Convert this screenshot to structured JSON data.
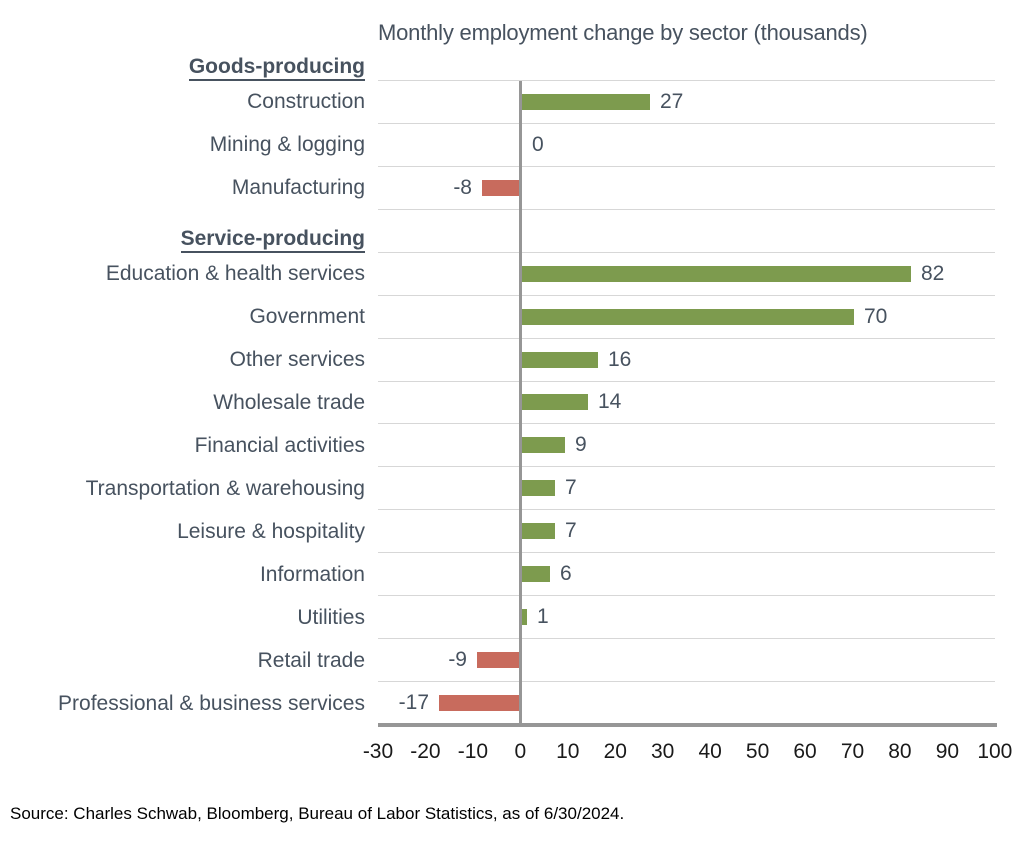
{
  "source": "Source: Charles Schwab, Bloomberg, Bureau of Labor Statistics, as of 6/30/2024.",
  "chart_data": {
    "type": "bar",
    "orientation": "horizontal",
    "title": "Monthly employment change by sector (thousands)",
    "xlabel": "",
    "ylabel": "",
    "xlim": [
      -30,
      100
    ],
    "x_ticks": [
      -30,
      -20,
      -10,
      0,
      10,
      20,
      30,
      40,
      50,
      60,
      70,
      80,
      90,
      100
    ],
    "grid": "horizontal-row-separators",
    "legend": "none",
    "colors": {
      "positive_bar": "#7D9B4E",
      "negative_bar": "#C86B5D",
      "label_text": "#47525F",
      "tick_text": "#1A1A1A",
      "gridline": "#D7D7D7",
      "axis_line": "#969696"
    },
    "rows": [
      {
        "type": "header",
        "label": "Goods-producing"
      },
      {
        "type": "bar",
        "label": "Construction",
        "value": 27
      },
      {
        "type": "bar",
        "label": "Mining & logging",
        "value": 0
      },
      {
        "type": "bar",
        "label": "Manufacturing",
        "value": -8
      },
      {
        "type": "header",
        "label": "Service-producing"
      },
      {
        "type": "bar",
        "label": "Education & health services",
        "value": 82
      },
      {
        "type": "bar",
        "label": "Government",
        "value": 70
      },
      {
        "type": "bar",
        "label": "Other services",
        "value": 16
      },
      {
        "type": "bar",
        "label": "Wholesale trade",
        "value": 14
      },
      {
        "type": "bar",
        "label": "Financial activities",
        "value": 9
      },
      {
        "type": "bar",
        "label": "Transportation & warehousing",
        "value": 7
      },
      {
        "type": "bar",
        "label": "Leisure & hospitality",
        "value": 7
      },
      {
        "type": "bar",
        "label": "Information",
        "value": 6
      },
      {
        "type": "bar",
        "label": "Utilities",
        "value": 1
      },
      {
        "type": "bar",
        "label": "Retail trade",
        "value": -9
      },
      {
        "type": "bar",
        "label": "Professional & business services",
        "value": -17
      }
    ]
  }
}
